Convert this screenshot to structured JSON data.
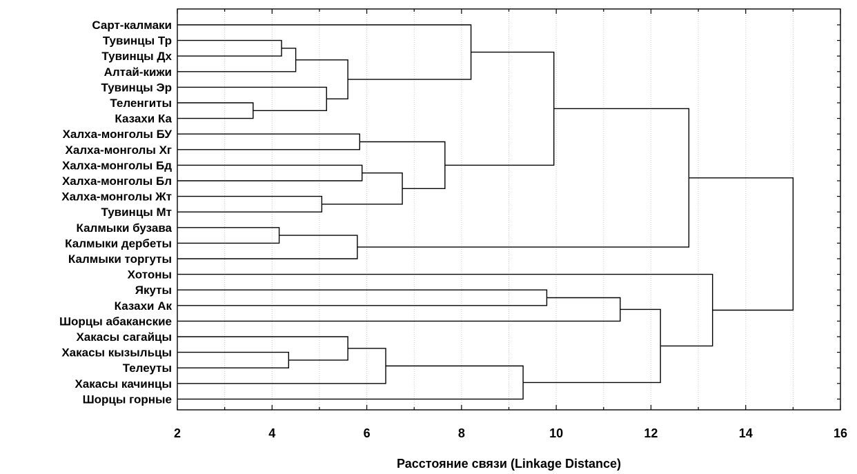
{
  "chart_data": {
    "type": "dendrogram",
    "xlabel": "Расстояние связи (Linkage Distance)",
    "xlim": [
      2,
      16
    ],
    "x_ticks": [
      "2",
      "4",
      "6",
      "8",
      "10",
      "12",
      "14",
      "16"
    ],
    "x_minor_step": 1,
    "grid": true,
    "leaves": [
      "Сарт-калмаки",
      "Тувинцы Тр",
      "Тувинцы Дх",
      "Алтай-кижи",
      "Тувинцы Эр",
      "Теленгиты",
      "Казахи Ка",
      "Халха-монголы БУ",
      "Халха-монголы Хг",
      "Халха-монголы Бд",
      "Халха-монголы Бл",
      "Халха-монголы Жт",
      "Тувинцы Мт",
      "Калмыки бузава",
      "Калмыки дербеты",
      "Калмыки торгуты",
      "Хотоны",
      "Якуты",
      "Казахи Ак",
      "Шорцы абаканские",
      "Хакасы сагайцы",
      "Хакасы кызыльцы",
      "Телеуты",
      "Хакасы качинцы",
      "Шорцы горные"
    ],
    "merges": [
      {
        "id": "m1",
        "a": "L:Тувинцы Тр",
        "b": "L:Тувинцы Дх",
        "height": 4.2
      },
      {
        "id": "m2",
        "a": "m1",
        "b": "L:Алтай-кижи",
        "height": 4.5
      },
      {
        "id": "m3",
        "a": "L:Теленгиты",
        "b": "L:Казахи Ка",
        "height": 3.6
      },
      {
        "id": "m4",
        "a": "L:Тувинцы Эр",
        "b": "m3",
        "height": 5.15
      },
      {
        "id": "m5",
        "a": "m2",
        "b": "m4",
        "height": 5.6
      },
      {
        "id": "m6",
        "a": "L:Сарт-калмаки",
        "b": "m5",
        "height": 8.2
      },
      {
        "id": "m7",
        "a": "L:Халха-монголы БУ",
        "b": "L:Халха-монголы Хг",
        "height": 5.85
      },
      {
        "id": "m8",
        "a": "L:Халха-монголы Бд",
        "b": "L:Халха-монголы Бл",
        "height": 5.9
      },
      {
        "id": "m9",
        "a": "L:Халха-монголы Жт",
        "b": "L:Тувинцы Мт",
        "height": 5.05
      },
      {
        "id": "m10",
        "a": "m8",
        "b": "m9",
        "height": 6.75
      },
      {
        "id": "m11",
        "a": "m7",
        "b": "m10",
        "height": 7.65
      },
      {
        "id": "m12",
        "a": "m6",
        "b": "m11",
        "height": 9.95
      },
      {
        "id": "m13",
        "a": "L:Калмыки бузава",
        "b": "L:Калмыки дербеты",
        "height": 4.15
      },
      {
        "id": "m14",
        "a": "m13",
        "b": "L:Калмыки торгуты",
        "height": 5.8
      },
      {
        "id": "m15",
        "a": "m12",
        "b": "m14",
        "height": 12.8
      },
      {
        "id": "m16",
        "a": "L:Якуты",
        "b": "L:Казахи Ак",
        "height": 9.8
      },
      {
        "id": "m17",
        "a": "m16",
        "b": "L:Шорцы абаканские",
        "height": 11.35
      },
      {
        "id": "m18",
        "a": "L:Хакасы кызыльцы",
        "b": "L:Телеуты",
        "height": 4.35
      },
      {
        "id": "m19",
        "a": "L:Хакасы сагайцы",
        "b": "m18",
        "height": 5.6
      },
      {
        "id": "m20",
        "a": "m19",
        "b": "L:Хакасы качинцы",
        "height": 6.4
      },
      {
        "id": "m21",
        "a": "m20",
        "b": "L:Шорцы горные",
        "height": 9.3
      },
      {
        "id": "m22",
        "a": "m17",
        "b": "m21",
        "height": 12.2
      },
      {
        "id": "m23",
        "a": "L:Хотоны",
        "b": "m22",
        "height": 13.3
      },
      {
        "id": "m24",
        "a": "m15",
        "b": "m23",
        "height": 15.0
      }
    ]
  }
}
